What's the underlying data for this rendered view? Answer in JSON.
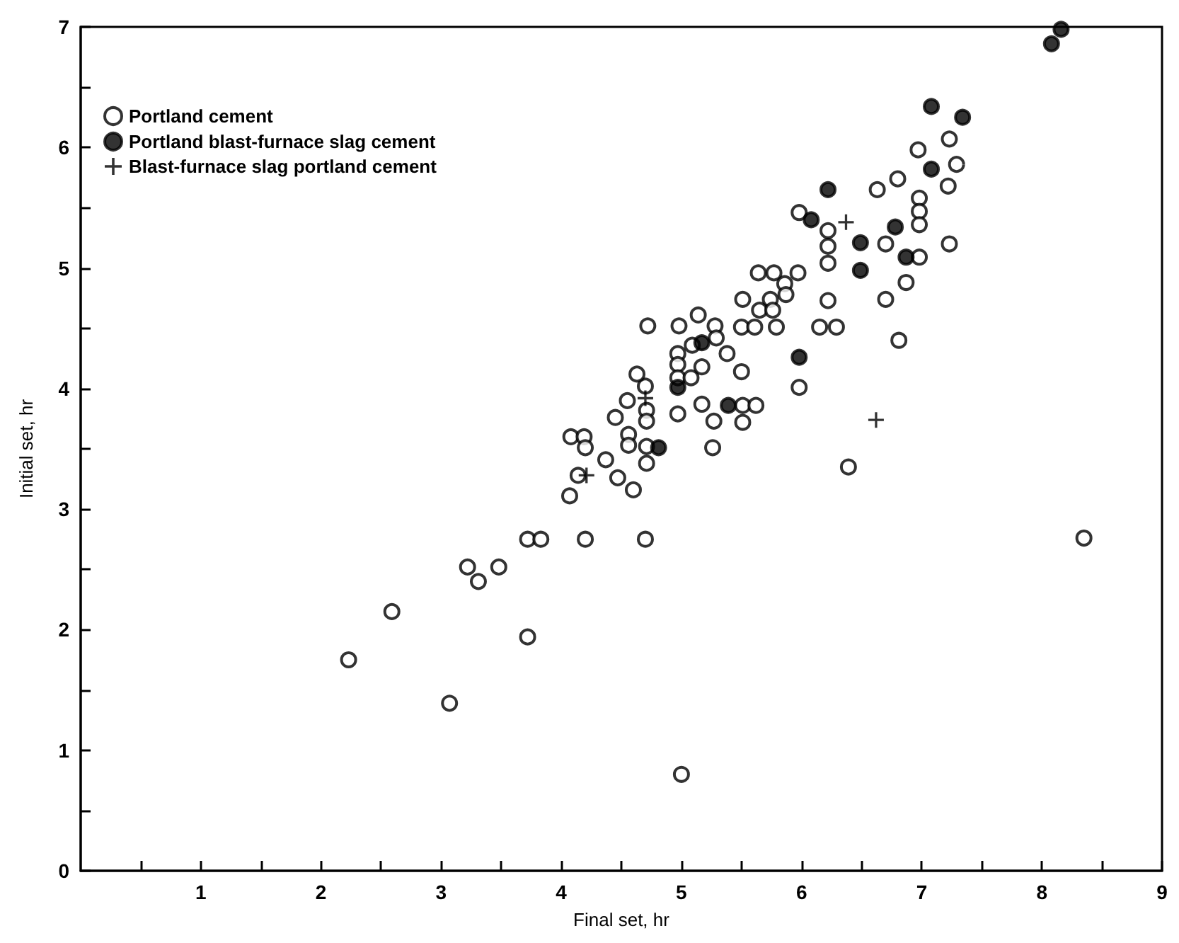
{
  "chart_data": {
    "type": "scatter",
    "xlabel": "Final set, hr",
    "ylabel": "Initial set, hr",
    "legend": "top left",
    "grid": false,
    "xlim": [
      0,
      9
    ],
    "xticks": [
      {
        "value": 0.5,
        "label": null
      },
      1,
      {
        "value": 1.5,
        "label": null
      },
      2,
      {
        "value": 2.5,
        "label": null
      },
      3,
      {
        "value": 3.5,
        "label": null
      },
      4,
      {
        "value": 4.5,
        "label": null
      },
      5,
      {
        "value": 5.5,
        "label": null
      },
      6,
      {
        "value": 6.5,
        "label": null
      },
      7,
      {
        "value": 7.5,
        "label": null
      },
      8,
      {
        "value": 8.5,
        "label": null
      },
      9
    ],
    "ylim": [
      0,
      7
    ],
    "yticks": [
      0,
      {
        "value": 0.5,
        "label": null
      },
      1,
      {
        "value": 1.5,
        "label": null
      },
      2,
      {
        "value": 2.5,
        "label": null
      },
      3,
      {
        "value": 3.5,
        "label": null
      },
      4,
      {
        "value": 4.5,
        "label": null
      },
      5,
      {
        "value": 5.5,
        "label": null
      },
      6,
      {
        "value": 6.5,
        "label": null
      },
      7
    ],
    "series": [
      {
        "name": "Portland cement",
        "color": "#ffffff",
        "marker": "circle",
        "x": [
          2.23,
          2.59,
          3.07,
          3.72,
          3.22,
          3.31,
          3.48,
          3.72,
          3.83,
          4.2,
          4.7,
          4.07,
          4.14,
          4.47,
          4.6,
          4.37,
          4.08,
          4.19,
          4.2,
          4.56,
          4.56,
          4.71,
          4.71,
          4.45,
          4.71,
          4.71,
          4.55,
          4.7,
          4.63,
          4.72,
          4.98,
          5.14,
          5.28,
          5.29,
          5.09,
          4.97,
          4.97,
          4.97,
          5.08,
          5.17,
          5.38,
          5.5,
          4.97,
          5.17,
          5.51,
          5.62,
          5.27,
          5.51,
          5.26,
          5.51,
          5.64,
          5.77,
          5.97,
          5.86,
          5.87,
          5.74,
          5.65,
          5.76,
          5.5,
          5.61,
          5.79,
          6.15,
          6.29,
          6.22,
          6.22,
          5.98,
          6.39,
          7.23,
          6.97,
          7.29,
          6.8,
          7.22,
          6.63,
          5.98,
          6.98,
          6.98,
          6.98,
          6.22,
          6.22,
          6.7,
          7.23,
          6.98,
          6.87,
          6.7,
          6.81,
          8.35,
          5.0
        ],
        "values": [
          1.75,
          2.15,
          1.39,
          1.94,
          2.52,
          2.4,
          2.52,
          2.75,
          2.75,
          2.75,
          2.75,
          3.11,
          3.28,
          3.26,
          3.16,
          3.41,
          3.6,
          3.6,
          3.51,
          3.62,
          3.53,
          3.52,
          3.38,
          3.76,
          3.82,
          3.73,
          3.9,
          4.02,
          4.12,
          4.52,
          4.52,
          4.61,
          4.52,
          4.42,
          4.36,
          4.29,
          4.2,
          4.09,
          4.09,
          4.18,
          4.29,
          4.14,
          3.79,
          3.87,
          3.86,
          3.86,
          3.73,
          3.72,
          3.51,
          4.74,
          4.96,
          4.96,
          4.96,
          4.87,
          4.78,
          4.74,
          4.65,
          4.65,
          4.51,
          4.51,
          4.51,
          4.51,
          4.51,
          4.73,
          5.04,
          4.01,
          3.35,
          6.07,
          5.98,
          5.86,
          5.74,
          5.68,
          5.65,
          5.46,
          5.58,
          5.47,
          5.36,
          5.31,
          5.18,
          5.2,
          5.2,
          5.09,
          4.88,
          4.74,
          4.4,
          2.76,
          0.8
        ]
      },
      {
        "name": "Portland blast-furnace slag cement",
        "color": "#000000",
        "marker": "circle",
        "x": [
          4.81,
          5.17,
          4.97,
          5.39,
          5.98,
          8.16,
          8.08,
          7.08,
          7.34,
          7.08,
          6.22,
          6.08,
          6.49,
          6.78,
          6.87,
          6.49
        ],
        "values": [
          3.51,
          4.38,
          4.01,
          3.86,
          4.26,
          6.98,
          6.86,
          6.34,
          6.25,
          5.82,
          5.65,
          5.4,
          5.21,
          5.34,
          5.09,
          4.98
        ]
      },
      {
        "name": "Blast-furnace slag portland cement",
        "color": "#000000",
        "marker": "cross",
        "x": [
          4.21,
          4.7,
          6.37,
          6.62
        ],
        "values": [
          3.28,
          3.92,
          5.38,
          3.74
        ]
      }
    ]
  }
}
